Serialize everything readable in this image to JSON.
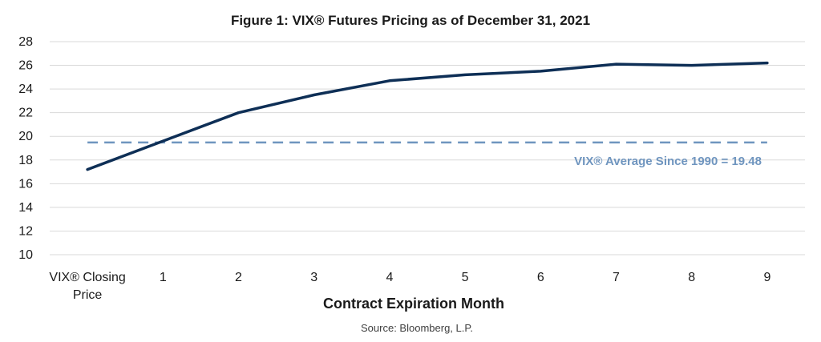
{
  "chart_data": {
    "type": "line",
    "title": "Figure 1: VIX® Futures Pricing as of December 31, 2021",
    "xlabel": "Contract Expiration Month",
    "ylabel": "",
    "source": "Source: Bloomberg, L.P.",
    "categories": [
      "VIX® Closing Price",
      "1",
      "2",
      "3",
      "4",
      "5",
      "6",
      "7",
      "8",
      "9"
    ],
    "category_lines": [
      [
        "VIX® Closing",
        "Price"
      ],
      [
        "1"
      ],
      [
        "2"
      ],
      [
        "3"
      ],
      [
        "4"
      ],
      [
        "5"
      ],
      [
        "6"
      ],
      [
        "7"
      ],
      [
        "8"
      ],
      [
        "9"
      ]
    ],
    "series": [
      {
        "values": [
          17.2,
          19.6,
          22.0,
          23.5,
          24.7,
          25.2,
          25.5,
          26.1,
          26.0,
          26.2
        ],
        "color": "#0e2f56"
      }
    ],
    "reference_line": {
      "value": 19.48,
      "label": "VIX® Average Since 1990 = 19.48",
      "color": "#6f95bf",
      "style": "dashed"
    },
    "ylim": [
      10,
      28
    ],
    "yticks": [
      10,
      12,
      14,
      16,
      18,
      20,
      22,
      24,
      26,
      28
    ],
    "grid": true,
    "legend": "none"
  }
}
